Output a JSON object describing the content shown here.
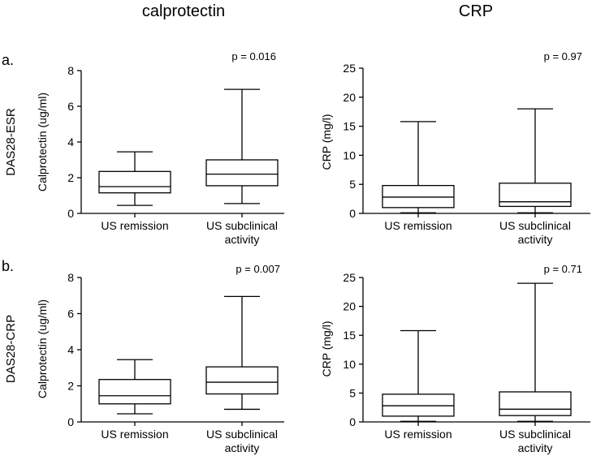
{
  "figure": {
    "column_titles": [
      "calprotectin",
      "CRP"
    ],
    "row_labels": [
      "a.",
      "b."
    ],
    "row_names": [
      "DAS28-ESR",
      "DAS28-CRP"
    ]
  },
  "chart_data": [
    {
      "type": "boxplot",
      "panel": "a-calprotectin",
      "ylabel": "Calprotectin (ug/ml)",
      "ylim": [
        0,
        8
      ],
      "yticks": [
        0,
        2,
        4,
        6,
        8
      ],
      "pvalue": "p = 0.016",
      "categories": [
        "US remission",
        "US subclinical activity"
      ],
      "category_lines": [
        [
          "US remission"
        ],
        [
          "US subclinical",
          "activity"
        ]
      ],
      "boxes": [
        {
          "min": 0.45,
          "q1": 1.15,
          "median": 1.5,
          "q3": 2.35,
          "max": 3.45
        },
        {
          "min": 0.55,
          "q1": 1.55,
          "median": 2.2,
          "q3": 3.0,
          "max": 6.95
        }
      ]
    },
    {
      "type": "boxplot",
      "panel": "a-crp",
      "ylabel": "CRP (mg/l)",
      "ylim": [
        0,
        25
      ],
      "yticks": [
        0,
        5,
        10,
        15,
        20,
        25
      ],
      "pvalue": "p = 0.97",
      "categories": [
        "US remission",
        "US subclinical activity"
      ],
      "category_lines": [
        [
          "US remission"
        ],
        [
          "US subclinical",
          "activity"
        ]
      ],
      "boxes": [
        {
          "min": 0.1,
          "q1": 1.0,
          "median": 2.8,
          "q3": 4.8,
          "max": 15.8
        },
        {
          "min": 0.1,
          "q1": 1.2,
          "median": 2.0,
          "q3": 5.2,
          "max": 18.0
        }
      ]
    },
    {
      "type": "boxplot",
      "panel": "b-calprotectin",
      "ylabel": "Calprotectin (ug/ml)",
      "ylim": [
        0,
        8
      ],
      "yticks": [
        0,
        2,
        4,
        6,
        8
      ],
      "pvalue": "p  = 0.007",
      "categories": [
        "US remission",
        "US subclinical activity"
      ],
      "category_lines": [
        [
          "US remission"
        ],
        [
          "US subclinical",
          "activity"
        ]
      ],
      "boxes": [
        {
          "min": 0.45,
          "q1": 1.0,
          "median": 1.45,
          "q3": 2.35,
          "max": 3.45
        },
        {
          "min": 0.7,
          "q1": 1.55,
          "median": 2.2,
          "q3": 3.05,
          "max": 6.95
        }
      ]
    },
    {
      "type": "boxplot",
      "panel": "b-crp",
      "ylabel": "CRP (mg/l)",
      "ylim": [
        0,
        25
      ],
      "yticks": [
        0,
        5,
        10,
        15,
        20,
        25
      ],
      "pvalue": "p = 0.71",
      "categories": [
        "US remission",
        "US subclinical activity"
      ],
      "category_lines": [
        [
          "US remission"
        ],
        [
          "US subclinical",
          "activity"
        ]
      ],
      "boxes": [
        {
          "min": 0.1,
          "q1": 1.0,
          "median": 2.8,
          "q3": 4.8,
          "max": 15.8
        },
        {
          "min": 0.1,
          "q1": 1.1,
          "median": 2.2,
          "q3": 5.2,
          "max": 24.0
        }
      ]
    }
  ]
}
